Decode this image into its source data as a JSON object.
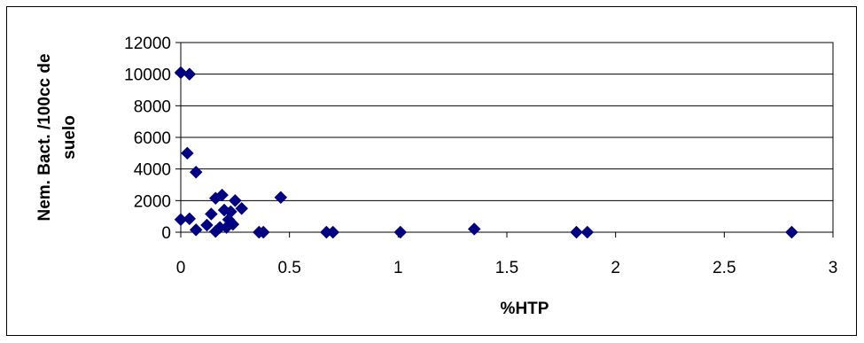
{
  "chart_data": {
    "type": "scatter",
    "title": "",
    "xlabel": "%HTP",
    "ylabel_lines": [
      "Nem. Bact. /100cc de",
      "suelo"
    ],
    "xlim": [
      0,
      3
    ],
    "ylim": [
      0,
      12000
    ],
    "x_ticks": [
      0,
      0.5,
      1,
      1.5,
      2,
      2.5,
      3
    ],
    "x_tick_labels": [
      "0",
      "0.5",
      "1",
      "1.5",
      "2",
      "2.5",
      "3"
    ],
    "y_ticks": [
      0,
      2000,
      4000,
      6000,
      8000,
      10000,
      12000
    ],
    "y_tick_labels": [
      "0",
      "2000",
      "4000",
      "6000",
      "8000",
      "10000",
      "12000"
    ],
    "grid": "horizontal",
    "marker": "diamond",
    "marker_color": "#000080",
    "points": [
      {
        "x": 0.0,
        "y": 10100
      },
      {
        "x": 0.04,
        "y": 10000
      },
      {
        "x": 0.03,
        "y": 5000
      },
      {
        "x": 0.07,
        "y": 3800
      },
      {
        "x": 0.0,
        "y": 800
      },
      {
        "x": 0.04,
        "y": 850
      },
      {
        "x": 0.07,
        "y": 150
      },
      {
        "x": 0.12,
        "y": 450
      },
      {
        "x": 0.14,
        "y": 1150
      },
      {
        "x": 0.16,
        "y": 50
      },
      {
        "x": 0.16,
        "y": 2150
      },
      {
        "x": 0.18,
        "y": 300
      },
      {
        "x": 0.19,
        "y": 2350
      },
      {
        "x": 0.2,
        "y": 1400
      },
      {
        "x": 0.21,
        "y": 300
      },
      {
        "x": 0.22,
        "y": 800
      },
      {
        "x": 0.23,
        "y": 1300
      },
      {
        "x": 0.24,
        "y": 500
      },
      {
        "x": 0.25,
        "y": 2000
      },
      {
        "x": 0.28,
        "y": 1500
      },
      {
        "x": 0.36,
        "y": 0
      },
      {
        "x": 0.38,
        "y": 0
      },
      {
        "x": 0.46,
        "y": 2200
      },
      {
        "x": 0.67,
        "y": 0
      },
      {
        "x": 0.7,
        "y": 0
      },
      {
        "x": 1.01,
        "y": 0
      },
      {
        "x": 1.35,
        "y": 200
      },
      {
        "x": 1.82,
        "y": 0
      },
      {
        "x": 1.87,
        "y": 0
      },
      {
        "x": 2.81,
        "y": 0
      }
    ]
  }
}
